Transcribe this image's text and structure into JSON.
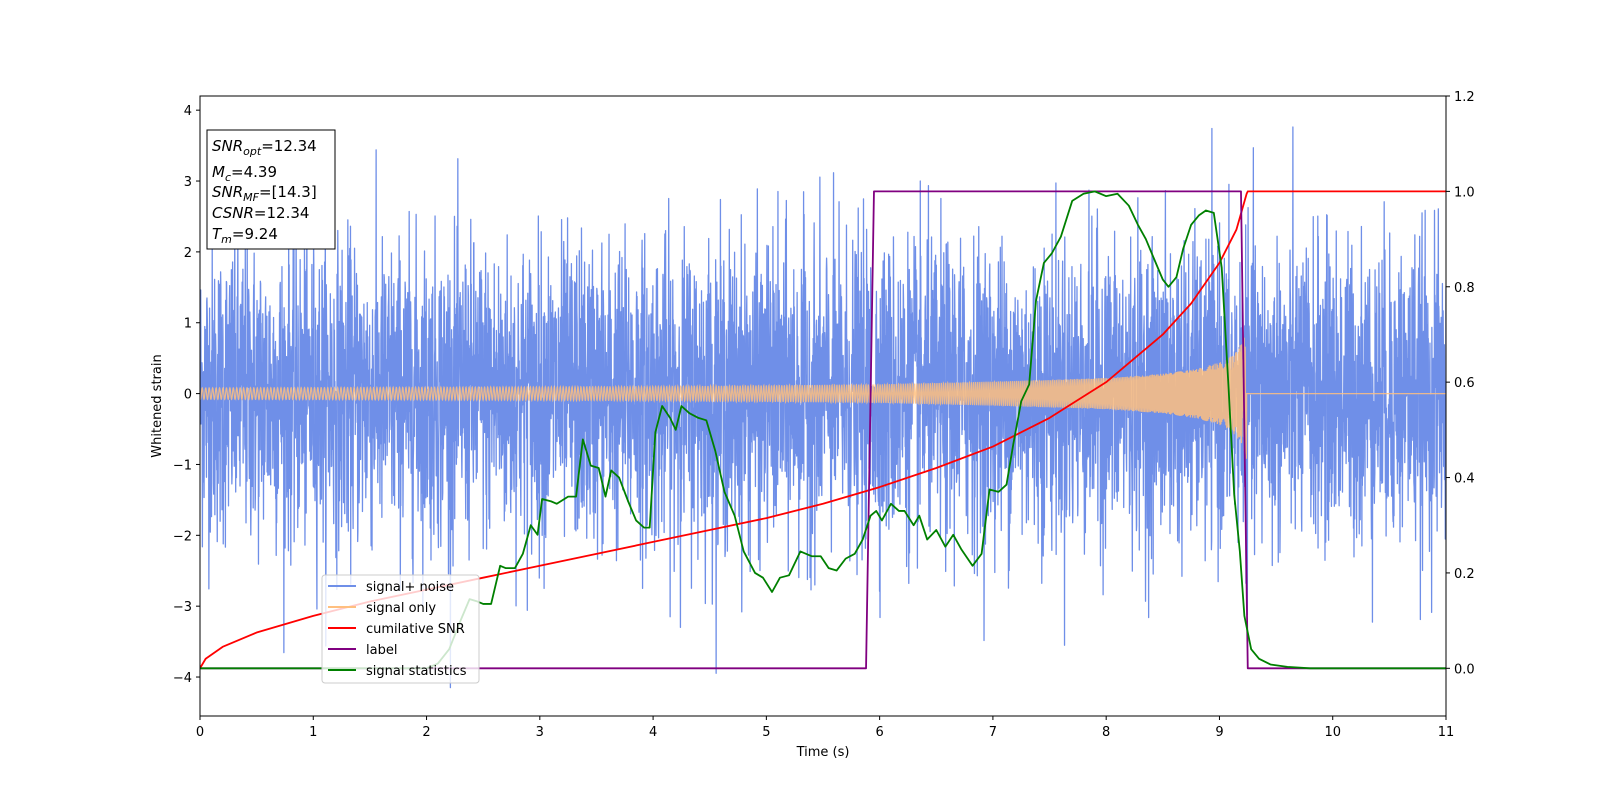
{
  "chart_data": {
    "type": "line",
    "xlabel": "Time (s)",
    "ylabel": "Whitened strain",
    "xlim": [
      0,
      11
    ],
    "ylim_left": [
      -4.55,
      4.2
    ],
    "ylim_right": [
      -0.1,
      1.2
    ],
    "x_ticks": [
      "0",
      "1",
      "2",
      "3",
      "4",
      "5",
      "6",
      "7",
      "8",
      "9",
      "10",
      "11"
    ],
    "y_left_ticks": [
      "4",
      "3",
      "2",
      "1",
      "0",
      "−1",
      "−2",
      "−3",
      "−4"
    ],
    "y_right_ticks": [
      "1.2",
      "1.0",
      "0.8",
      "0.6",
      "0.4",
      "0.2",
      "0.0"
    ],
    "info_box": [
      {
        "main": "SNR",
        "sub": "opt",
        "rest": "=12.34"
      },
      {
        "main": "M",
        "sub": "c",
        "rest": "=4.39"
      },
      {
        "main": "SNR",
        "sub": "MF",
        "rest": "=[14.3]"
      },
      {
        "main": "CSNR",
        "sub": "",
        "rest": "=12.34"
      },
      {
        "main": "T",
        "sub": "m",
        "rest": "=9.24"
      }
    ],
    "legend": {
      "placement": "lower-left",
      "entries": [
        {
          "label": "signal+ noise",
          "color": "#6f8fe8"
        },
        {
          "label": "signal only",
          "color": "#ffbf7f"
        },
        {
          "label": "cumilative SNR",
          "color": "#ff0000"
        },
        {
          "label": "label",
          "color": "#800080"
        },
        {
          "label": "signal statistics",
          "color": "#008000"
        }
      ]
    },
    "series": [
      {
        "name": "signal+ noise",
        "axis": "left",
        "color": "#6f8fe8",
        "description": "noisy whitened strain, amplitude roughly within ±2.5 with spikes to ±3.8"
      },
      {
        "name": "signal only",
        "axis": "left",
        "color": "#ffbf7f",
        "envelope": {
          "x": [
            0,
            2,
            4,
            6,
            7,
            8,
            8.5,
            8.8,
            9.0,
            9.1,
            9.2,
            9.24,
            9.25,
            11
          ],
          "amplitude": [
            0.08,
            0.09,
            0.1,
            0.13,
            0.17,
            0.22,
            0.28,
            0.35,
            0.44,
            0.52,
            0.72,
            0.95,
            0.0,
            0.0
          ]
        }
      },
      {
        "name": "cumilative SNR",
        "axis": "right",
        "color": "#ff0000",
        "x": [
          0,
          0.05,
          0.2,
          0.5,
          1,
          1.5,
          2,
          2.5,
          3,
          3.5,
          4,
          4.5,
          5,
          5.5,
          6,
          6.5,
          7,
          7.5,
          8,
          8.5,
          8.75,
          9,
          9.15,
          9.24,
          9.25,
          11
        ],
        "y": [
          0.0,
          0.02,
          0.045,
          0.075,
          0.11,
          0.14,
          0.165,
          0.19,
          0.215,
          0.24,
          0.265,
          0.29,
          0.315,
          0.345,
          0.38,
          0.42,
          0.465,
          0.525,
          0.6,
          0.7,
          0.765,
          0.85,
          0.92,
          0.995,
          1.0,
          1.0
        ]
      },
      {
        "name": "label",
        "axis": "right",
        "color": "#800080",
        "x": [
          0,
          5.88,
          5.95,
          9.19,
          9.25,
          11
        ],
        "y": [
          0,
          0,
          1,
          1,
          0,
          0
        ]
      },
      {
        "name": "signal statistics",
        "axis": "right",
        "color": "#008000",
        "x": [
          0,
          2.0,
          2.1,
          2.2,
          2.3,
          2.38,
          2.45,
          2.5,
          2.57,
          2.65,
          2.7,
          2.78,
          2.85,
          2.92,
          2.98,
          3.02,
          3.1,
          3.15,
          3.25,
          3.32,
          3.38,
          3.45,
          3.52,
          3.58,
          3.63,
          3.7,
          3.78,
          3.85,
          3.92,
          3.97,
          4.02,
          4.08,
          4.15,
          4.2,
          4.25,
          4.32,
          4.4,
          4.47,
          4.55,
          4.63,
          4.72,
          4.8,
          4.9,
          4.97,
          5.05,
          5.12,
          5.2,
          5.3,
          5.4,
          5.48,
          5.55,
          5.62,
          5.7,
          5.78,
          5.85,
          5.92,
          5.97,
          6.02,
          6.1,
          6.17,
          6.22,
          6.3,
          6.35,
          6.42,
          6.5,
          6.58,
          6.65,
          6.72,
          6.82,
          6.9,
          6.97,
          7.05,
          7.12,
          7.18,
          7.25,
          7.32,
          7.38,
          7.45,
          7.52,
          7.6,
          7.7,
          7.8,
          7.9,
          8.0,
          8.1,
          8.2,
          8.28,
          8.35,
          8.42,
          8.5,
          8.55,
          8.62,
          8.68,
          8.75,
          8.82,
          8.88,
          8.95,
          9.02,
          9.08,
          9.13,
          9.18,
          9.22,
          9.28,
          9.35,
          9.45,
          9.6,
          9.8,
          10.2,
          11
        ],
        "y": [
          0.0,
          0.0,
          0.01,
          0.04,
          0.1,
          0.145,
          0.14,
          0.135,
          0.135,
          0.215,
          0.21,
          0.21,
          0.24,
          0.3,
          0.28,
          0.355,
          0.35,
          0.345,
          0.36,
          0.36,
          0.48,
          0.425,
          0.42,
          0.36,
          0.415,
          0.4,
          0.35,
          0.31,
          0.295,
          0.295,
          0.495,
          0.55,
          0.525,
          0.5,
          0.55,
          0.535,
          0.525,
          0.52,
          0.455,
          0.37,
          0.32,
          0.245,
          0.2,
          0.19,
          0.16,
          0.19,
          0.195,
          0.245,
          0.235,
          0.235,
          0.21,
          0.205,
          0.23,
          0.24,
          0.27,
          0.32,
          0.33,
          0.31,
          0.345,
          0.33,
          0.33,
          0.3,
          0.32,
          0.27,
          0.29,
          0.255,
          0.28,
          0.25,
          0.215,
          0.24,
          0.375,
          0.37,
          0.385,
          0.47,
          0.56,
          0.595,
          0.77,
          0.85,
          0.87,
          0.905,
          0.98,
          0.995,
          1.0,
          0.99,
          0.995,
          0.97,
          0.93,
          0.9,
          0.86,
          0.815,
          0.8,
          0.82,
          0.88,
          0.93,
          0.95,
          0.96,
          0.955,
          0.84,
          0.59,
          0.365,
          0.245,
          0.11,
          0.04,
          0.02,
          0.008,
          0.003,
          0.0,
          0.0,
          0.0
        ]
      }
    ]
  }
}
